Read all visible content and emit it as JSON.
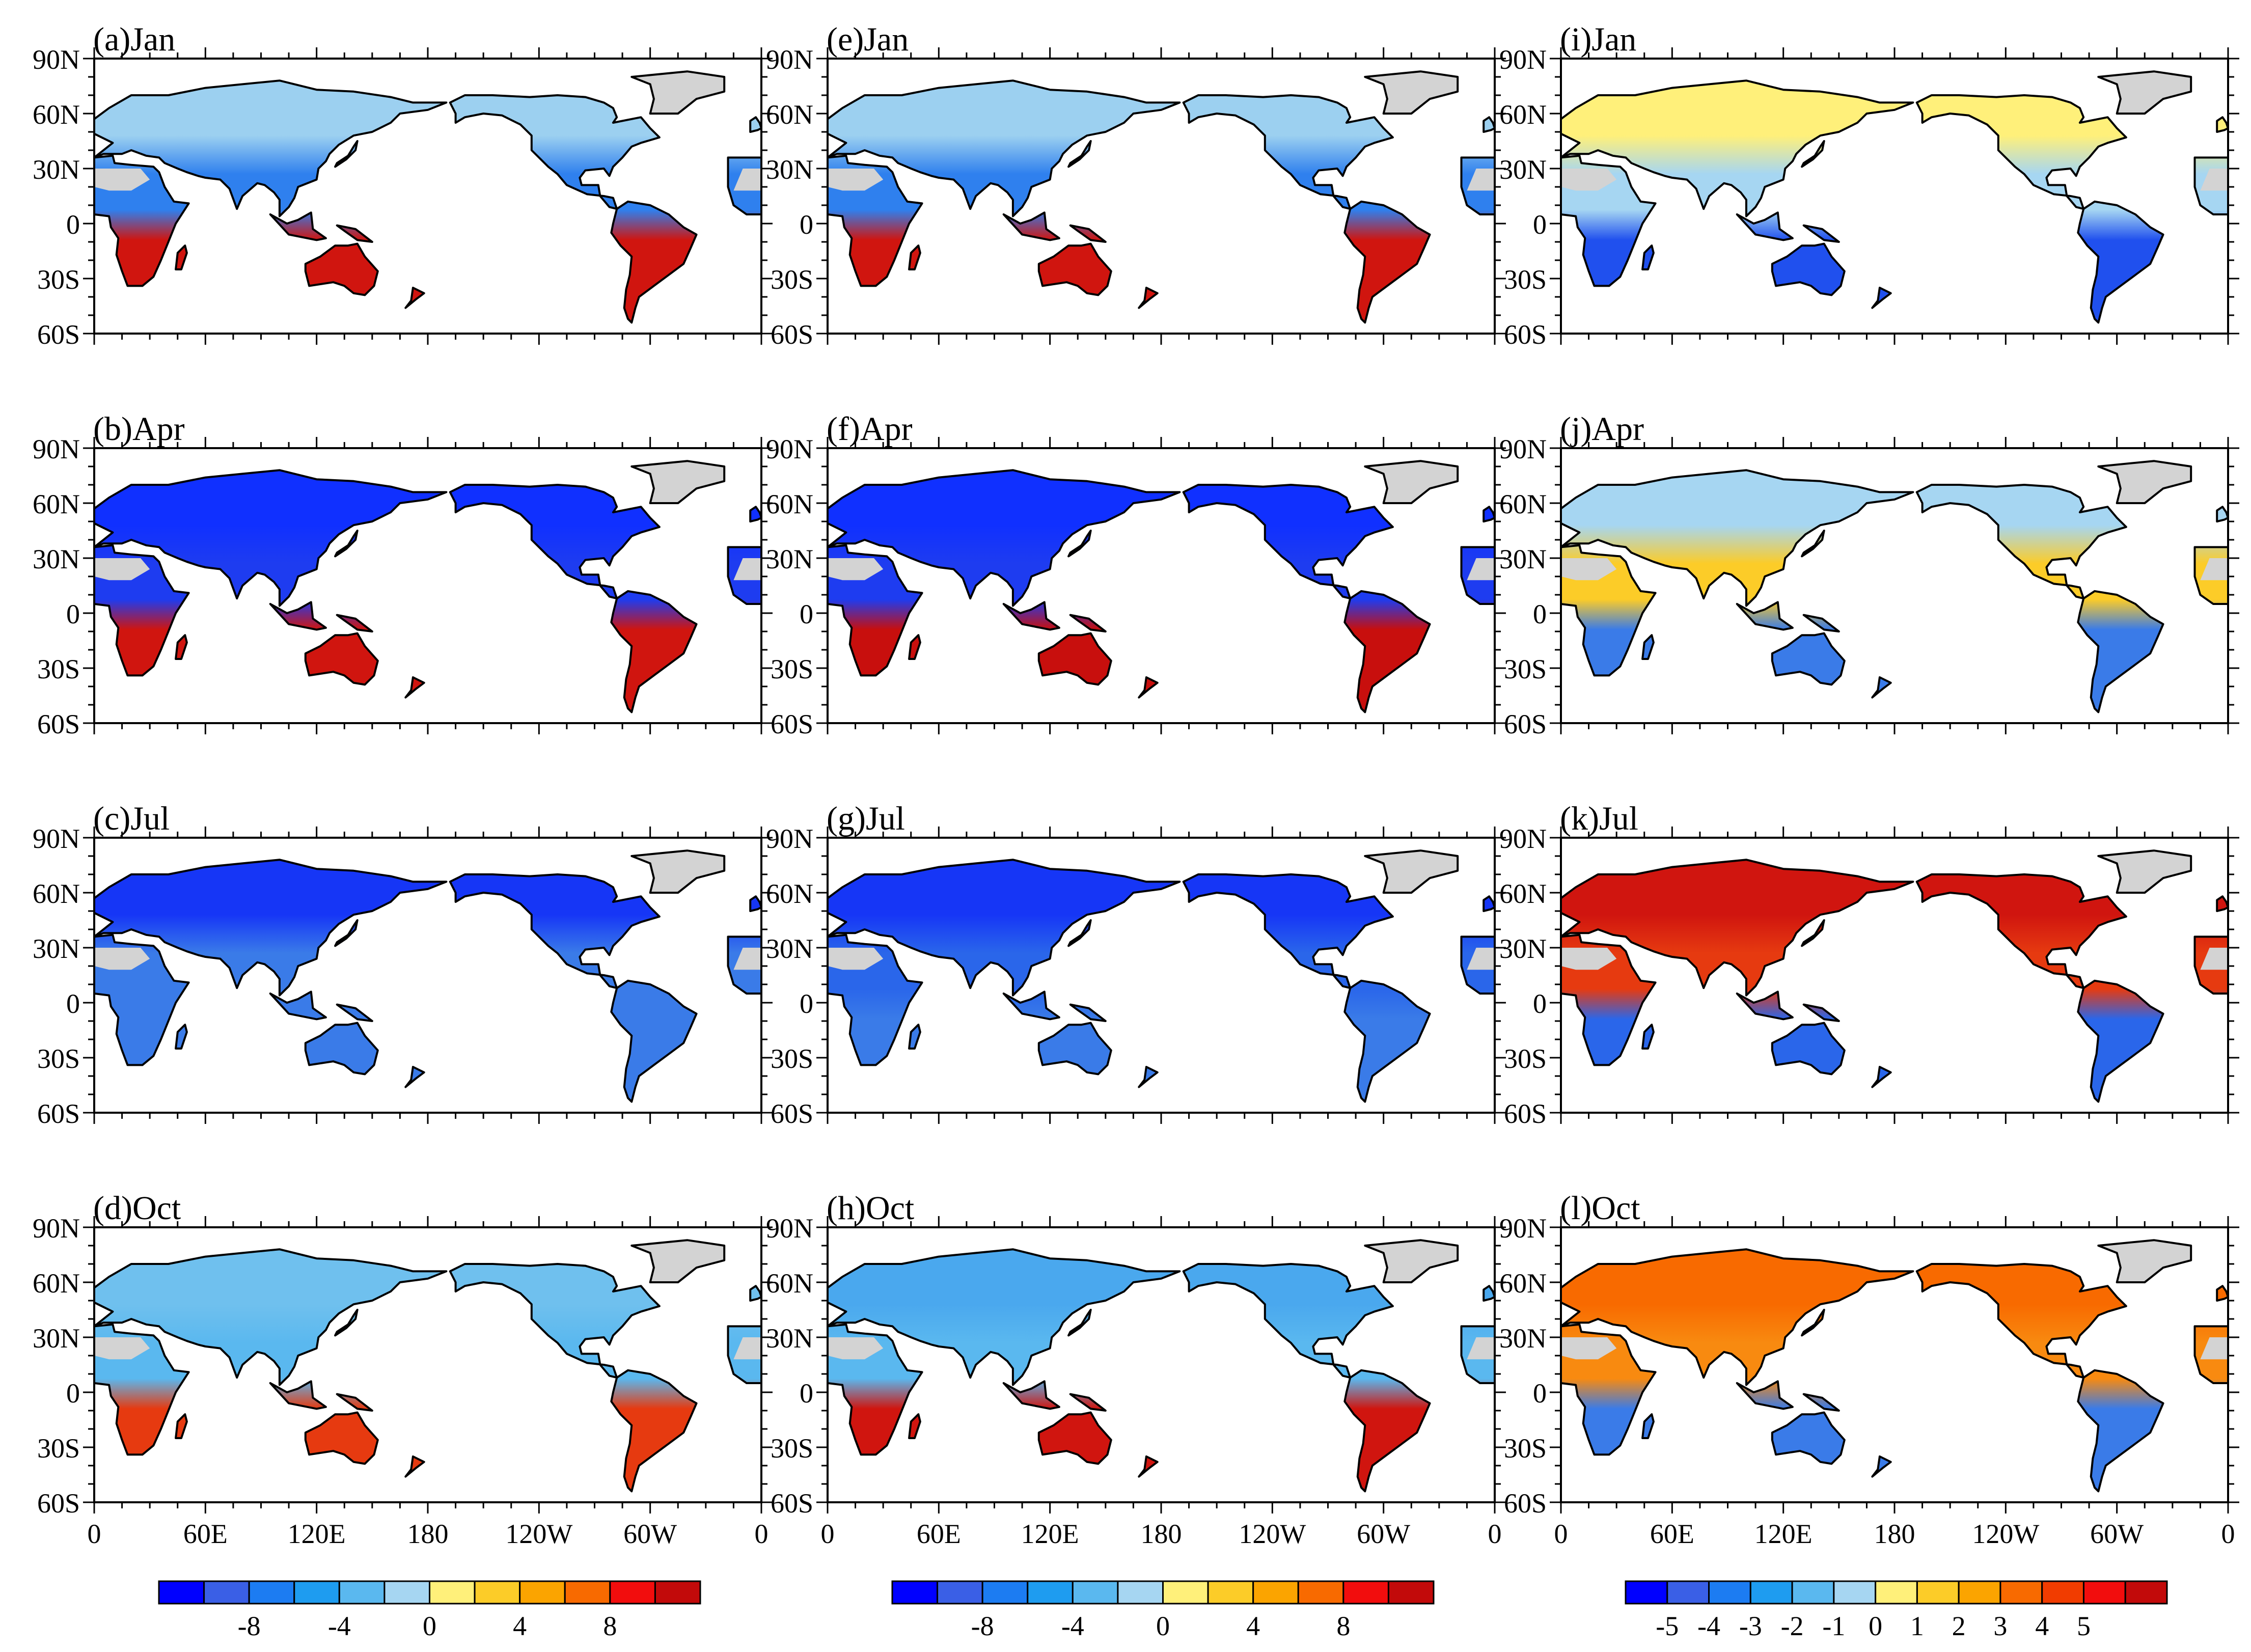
{
  "figure": {
    "columns": [
      {
        "label": "left",
        "colorbar": "diverging_12",
        "panels": [
          "(a)Jan",
          "(b)Apr",
          "(c)Jul",
          "(d)Oct"
        ]
      },
      {
        "label": "middle",
        "colorbar": "diverging_12",
        "panels": [
          "(e)Jan",
          "(f)Apr",
          "(g)Jul",
          "(h)Oct"
        ]
      },
      {
        "label": "right",
        "colorbar": "diverging_13",
        "panels": [
          "(i)Jan",
          "(j)Apr",
          "(k)Jul",
          "(l)Oct"
        ]
      }
    ]
  },
  "chart_data": {
    "type": "map-grid",
    "lat_ticks": [
      "90N",
      "60N",
      "30N",
      "0",
      "30S",
      "60S"
    ],
    "lat_values": [
      90,
      60,
      30,
      0,
      -30,
      -60
    ],
    "lon_ticks": [
      "0",
      "60E",
      "120E",
      "180",
      "120W",
      "60W",
      "0"
    ],
    "lon_values": [
      0,
      60,
      120,
      180,
      240,
      300,
      360
    ],
    "colorbars": {
      "diverging_12": {
        "colors": [
          "#0000ff",
          "#3a5fe6",
          "#1c7cf2",
          "#1e9cf0",
          "#5ab8ef",
          "#a6d6f2",
          "#fff07a",
          "#fccc28",
          "#fba400",
          "#f86a00",
          "#f20d0d",
          "#c20a0a"
        ],
        "labels": [
          "-8",
          "-4",
          "0",
          "4",
          "8"
        ],
        "label_boundaries": [
          2,
          4,
          6,
          8,
          10
        ]
      },
      "diverging_13": {
        "colors": [
          "#0000ff",
          "#3a5fe6",
          "#1c7cf2",
          "#1e9cf0",
          "#5ab8ef",
          "#a6d6f2",
          "#fff07a",
          "#fccc28",
          "#fba400",
          "#f86a00",
          "#f13c00",
          "#f20d0d",
          "#c20a0a"
        ],
        "labels": [
          "-5",
          "-4",
          "-3",
          "-2",
          "-1",
          "0",
          "1",
          "2",
          "3",
          "4",
          "5"
        ],
        "label_boundaries": [
          1,
          2,
          3,
          4,
          5,
          6,
          7,
          8,
          9,
          10,
          11
        ]
      }
    },
    "missing_color": "#d3d3d3",
    "land_color_by_panel": {
      "a": {
        "tropics": "#d0150f",
        "midlat": "#2f80ee",
        "north": "#9cd0f0"
      },
      "b": {
        "tropics": "#d0150f",
        "midlat": "#1e3cf0",
        "north": "#1030ff"
      },
      "c": {
        "tropics": "#3a7be8",
        "midlat": "#3a7be8",
        "north": "#1636f6"
      },
      "d": {
        "tropics": "#e63a10",
        "midlat": "#5ab8ef",
        "north": "#6fc0ee"
      },
      "e": {
        "tropics": "#d0150f",
        "midlat": "#2f80ee",
        "north": "#9cd0f0"
      },
      "f": {
        "tropics": "#c80f0d",
        "midlat": "#1e3cf0",
        "north": "#1030ff"
      },
      "g": {
        "tropics": "#3a7be8",
        "midlat": "#2a66ea",
        "north": "#1636f6"
      },
      "h": {
        "tropics": "#d0150f",
        "midlat": "#5ab8ef",
        "north": "#4aa8ee"
      },
      "i": {
        "tropics": "#2050ee",
        "midlat": "#a6d6f2",
        "north": "#fff07a"
      },
      "j": {
        "tropics": "#3a7be8",
        "midlat": "#fccc28",
        "north": "#a6d6f2"
      },
      "k": {
        "tropics": "#2a66ea",
        "midlat": "#e63a10",
        "north": "#d0150f"
      },
      "l": {
        "tropics": "#3a7be8",
        "midlat": "#f88a10",
        "north": "#f86a00"
      }
    }
  }
}
